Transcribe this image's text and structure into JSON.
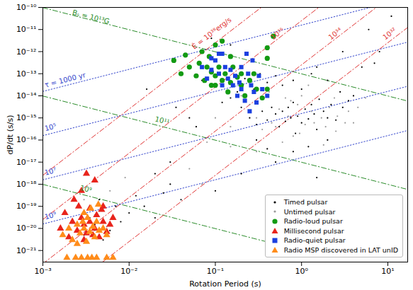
{
  "chart_data": {
    "type": "scatter",
    "xlabel": "Rotation Period (s)",
    "ylabel": "dP/dt (s/s)",
    "log": true,
    "xlim": [
      0.001,
      17
    ],
    "ylim": [
      3e-22,
      1e-10
    ],
    "xticks": [
      {
        "value": 0.001,
        "label": "10⁻³"
      },
      {
        "value": 0.01,
        "label": "10⁻²"
      },
      {
        "value": 0.1,
        "label": "10⁻¹"
      },
      {
        "value": 1,
        "label": "10⁰"
      },
      {
        "value": 10,
        "label": "10¹"
      }
    ],
    "yticks": [
      {
        "value": 1e-10,
        "label": "10⁻¹⁰"
      },
      {
        "value": 1e-11,
        "label": "10⁻¹¹"
      },
      {
        "value": 1e-12,
        "label": "10⁻¹²"
      },
      {
        "value": 1e-13,
        "label": "10⁻¹³"
      },
      {
        "value": 1e-14,
        "label": "10⁻¹⁴"
      },
      {
        "value": 1e-15,
        "label": "10⁻¹⁵"
      },
      {
        "value": 1e-16,
        "label": "10⁻¹⁶"
      },
      {
        "value": 1e-17,
        "label": "10⁻¹⁷"
      },
      {
        "value": 1e-18,
        "label": "10⁻¹⁸"
      },
      {
        "value": 1e-19,
        "label": "10⁻¹⁹"
      },
      {
        "value": 1e-20,
        "label": "10⁻²⁰"
      },
      {
        "value": 1e-21,
        "label": "10⁻²¹"
      }
    ],
    "legend": "lower right",
    "series": [
      {
        "name": "Timed pulsar",
        "color": "#000000",
        "marker": "dot",
        "x": [
          0.2,
          0.25,
          0.3,
          0.35,
          0.4,
          0.45,
          0.5,
          0.55,
          0.6,
          0.65,
          0.7,
          0.75,
          0.8,
          0.85,
          0.9,
          1.0,
          1.1,
          1.2,
          1.3,
          1.4,
          1.5,
          1.6,
          1.8,
          2.0,
          2.2,
          2.5,
          2.8,
          3.0,
          3.5,
          4.0,
          0.15,
          0.12,
          0.18,
          0.22,
          0.28,
          0.33,
          0.4,
          0.5,
          0.6,
          0.8,
          1.0,
          1.3,
          2.0,
          0.09,
          0.1,
          0.07,
          0.05,
          0.06,
          0.3,
          0.5,
          0.8,
          1.2,
          2.0,
          0.4,
          1.5,
          0.03,
          0.02,
          0.04,
          0.1,
          0.2,
          5,
          8,
          11,
          6,
          7,
          0.016,
          0.09,
          0.15,
          3,
          1.5,
          0.035,
          0.002,
          0.003,
          0.004,
          0.005,
          0.006,
          0.008,
          0.01,
          0.015,
          0.02,
          0.0045,
          0.0035,
          0.007,
          0.012,
          0.03,
          0.025
        ],
        "values": [
          3e-15,
          1e-15,
          5e-16,
          2e-15,
          8e-16,
          3e-15,
          1.5e-15,
          4e-16,
          2e-15,
          7e-16,
          3e-15,
          1e-15,
          5e-15,
          2e-16,
          1.2e-15,
          6e-16,
          2.5e-15,
          9e-16,
          4e-15,
          1.5e-15,
          3e-16,
          7e-15,
          2e-15,
          1e-15,
          4e-15,
          8e-16,
          1.5e-14,
          3e-15,
          6e-15,
          1e-14,
          8e-15,
          5e-15,
          1.5e-14,
          6e-14,
          2e-14,
          1e-13,
          4e-14,
          8e-14,
          3e-14,
          5e-14,
          2e-14,
          1e-13,
          5e-14,
          1e-13,
          3e-14,
          5e-14,
          1e-15,
          4e-16,
          1e-16,
          1e-17,
          3e-17,
          5e-17,
          1e-16,
          4e-17,
          2e-18,
          1e-17,
          3e-18,
          2e-19,
          5e-19,
          3e-18,
          2e-13,
          1e-12,
          4e-11,
          1e-11,
          3e-13,
          2e-14,
          4e-12,
          2e-12,
          1e-12,
          2e-13,
          3e-15,
          1e-20,
          5e-21,
          1.5e-20,
          3e-21,
          8e-21,
          2e-20,
          5e-20,
          1e-19,
          3e-20,
          2e-19,
          3e-20,
          1e-19,
          3e-19,
          1e-18,
          4e-19
        ]
      },
      {
        "name": "Untimed pulsar",
        "color": "#9a9a9a",
        "marker": "dot",
        "x": [
          0.3,
          0.45,
          0.55,
          0.7,
          0.9,
          1.1,
          1.3,
          1.7,
          2.1,
          2.6,
          3.2,
          4.5,
          0.25,
          0.35,
          0.6,
          0.95,
          1.4,
          1.9,
          0.65,
          0.42,
          1.0,
          0.2,
          0.15,
          0.8,
          1.2,
          2.4,
          3.5,
          5.5,
          0.5,
          0.75,
          0.1,
          0.08,
          0.3,
          0.009,
          0.006,
          0.004,
          0.0025,
          0.003,
          0.05,
          0.07,
          0.15,
          1.8,
          2.5,
          4,
          0.004,
          0.0055
        ],
        "values": [
          1e-15,
          6e-16,
          2.5e-15,
          1.2e-15,
          4e-15,
          5e-16,
          2e-15,
          1e-15,
          3e-15,
          1.2e-15,
          6e-16,
          3e-15,
          4e-15,
          3e-16,
          8e-17,
          2e-16,
          6e-16,
          4e-16,
          8e-15,
          1.5e-14,
          1e-14,
          1e-14,
          4e-16,
          1.5e-16,
          3e-14,
          8e-15,
          2e-15,
          8e-15,
          4e-16,
          6e-15,
          1e-15,
          8e-17,
          3e-17,
          2e-18,
          5e-19,
          4e-20,
          1.5e-20,
          2e-19,
          5e-18,
          1e-18,
          5e-17,
          6e-17,
          2.5e-16,
          6e-16,
          8e-21,
          1.2e-20
        ]
      },
      {
        "name": "Radio-loud pulsar",
        "color": "#139a13",
        "marker": "circle",
        "x": [
          0.033,
          0.04,
          0.05,
          0.06,
          0.065,
          0.07,
          0.075,
          0.08,
          0.085,
          0.09,
          0.1,
          0.1,
          0.11,
          0.12,
          0.13,
          0.14,
          0.15,
          0.16,
          0.18,
          0.2,
          0.22,
          0.25,
          0.3,
          0.35,
          0.4,
          0.045,
          0.1,
          0.15,
          0.12,
          0.4,
          0.28,
          0.09,
          0.2,
          0.47,
          0.4
        ],
        "values": [
          4e-13,
          1e-13,
          2e-13,
          8e-14,
          3e-13,
          1e-12,
          5e-14,
          2e-13,
          6e-13,
          1.2e-13,
          3e-14,
          8e-14,
          2e-13,
          5e-14,
          1e-13,
          1.5e-14,
          4e-14,
          2e-13,
          7e-14,
          3e-14,
          1e-14,
          5e-14,
          2e-14,
          8e-15,
          2e-14,
          7e-13,
          2e-12,
          6e-13,
          3e-12,
          5e-13,
          1e-13,
          3e-14,
          1e-13,
          5e-12,
          1.5e-12
        ]
      },
      {
        "name": "Millisecond pulsar",
        "color": "#e8241c",
        "marker": "triangle",
        "x": [
          0.0016,
          0.002,
          0.0022,
          0.0025,
          0.0028,
          0.003,
          0.0032,
          0.0035,
          0.004,
          0.0045,
          0.005,
          0.0055,
          0.006,
          0.0028,
          0.0032,
          0.004,
          0.0023,
          0.0035,
          0.0042,
          0.005,
          0.0018,
          0.0026,
          0.003,
          0.0038,
          0.0065,
          0.0048
        ],
        "values": [
          1e-20,
          4e-21,
          2e-20,
          8e-21,
          3e-20,
          1.5e-20,
          6e-21,
          2e-20,
          1e-20,
          4e-21,
          2e-20,
          7e-21,
          1.5e-20,
          5e-19,
          3e-18,
          1.5e-18,
          2e-19,
          8e-20,
          4e-20,
          1e-19,
          5e-20,
          1e-19,
          3e-21,
          5e-21,
          3e-20,
          7e-20
        ]
      },
      {
        "name": "Radio-quiet pulsar",
        "color": "#1b3fe0",
        "marker": "square",
        "x": [
          0.07,
          0.08,
          0.09,
          0.1,
          0.11,
          0.12,
          0.13,
          0.14,
          0.15,
          0.16,
          0.17,
          0.18,
          0.19,
          0.2,
          0.22,
          0.24,
          0.26,
          0.28,
          0.3,
          0.32,
          0.35,
          0.4,
          0.09,
          0.11,
          0.2,
          0.27,
          0.25,
          0.23,
          0.12
        ],
        "values": [
          2e-13,
          6e-14,
          1.5e-13,
          4e-13,
          1e-13,
          3e-14,
          2e-13,
          6e-14,
          1.5e-13,
          3e-14,
          8e-14,
          1e-14,
          4e-14,
          2e-14,
          6e-15,
          1e-13,
          3e-14,
          1.5e-14,
          5e-15,
          8e-14,
          2e-14,
          1e-14,
          5e-13,
          8e-13,
          2e-13,
          4e-13,
          2e-15,
          8e-13,
          8e-13
        ]
      },
      {
        "name": "Radio MSP discovered in LAT unID",
        "color": "#ff8c1a",
        "marker": "triangle",
        "x": [
          0.0017,
          0.002,
          0.0022,
          0.0025,
          0.0027,
          0.003,
          0.0033,
          0.0035,
          0.0038,
          0.004,
          0.0042,
          0.0045,
          0.005,
          0.0055,
          0.003,
          0.0036,
          0.0025,
          0.0019,
          0.0024,
          0.0028,
          0.0033,
          0.0037,
          0.0042,
          0.0055,
          0.0065,
          0.0032,
          0.0029,
          0.0044
        ],
        "values": [
          5e-21,
          1e-20,
          3e-21,
          1.5e-20,
          6e-21,
          1e-20,
          3e-20,
          7e-21,
          1.2e-20,
          4e-21,
          2e-20,
          8e-21,
          1e-20,
          5e-21,
          5e-20,
          8e-20,
          2e-21,
          4.7e-22,
          4.7e-22,
          4.7e-22,
          4.7e-22,
          4.7e-22,
          4.7e-22,
          4.7e-22,
          4.7e-22,
          2.5e-21,
          2e-20,
          1.2e-19
        ]
      }
    ],
    "reference_lines": [
      {
        "label": "Bₛ = 10¹³G",
        "color": "#2a8c2a",
        "line_style": "dashdot",
        "x": [
          0.001,
          17
        ],
        "values": [
          9.8e-11,
          5.8e-15
        ],
        "label_x": 0.0022,
        "label_y": 6e-11
      },
      {
        "label": "10¹¹",
        "color": "#2a8c2a",
        "line_style": "dashdot",
        "x": [
          0.001,
          17
        ],
        "values": [
          9.8e-15,
          5.8e-19
        ],
        "label_x": 0.02,
        "label_y": 9e-16
      },
      {
        "label": "10⁹",
        "color": "#2a8c2a",
        "line_style": "dashdot",
        "x": [
          0.001,
          0.4
        ],
        "values": [
          9.8e-19,
          2.45e-21
        ],
        "label_x": 0.0027,
        "label_y": 7e-19
      },
      {
        "label": "τ = 1000 yr",
        "color": "#3345cc",
        "line_style": "dotted",
        "x": [
          0.001,
          17
        ],
        "values": [
          1.58e-14,
          2.7e-10
        ],
        "label_x": 0.00105,
        "label_y": 3e-14
      },
      {
        "label": "10⁵",
        "color": "#3345cc",
        "line_style": "dotted",
        "x": [
          0.001,
          17
        ],
        "values": [
          1.58e-16,
          2.7e-12
        ],
        "label_x": 0.00105,
        "label_y": 3.2e-16
      },
      {
        "label": "10⁷",
        "color": "#3345cc",
        "line_style": "dotted",
        "x": [
          0.001,
          17
        ],
        "values": [
          1.58e-18,
          2.7e-14
        ],
        "label_x": 0.00105,
        "label_y": 3.2e-18
      },
      {
        "label": "10⁹",
        "color": "#3345cc",
        "line_style": "dotted",
        "x": [
          0.001,
          17
        ],
        "values": [
          1.58e-20,
          2.7e-16
        ],
        "label_x": 0.00105,
        "label_y": 3.2e-20
      },
      {
        "label": "Ė = 10³⁸erg/s",
        "color": "#e03333",
        "line_style": "dashdot",
        "x": [
          0.001,
          0.5
        ],
        "values": [
          2.53e-18,
          3.16e-10
        ],
        "label_x": 0.055,
        "label_y": 1.5e-12
      },
      {
        "label": "10³⁶",
        "color": "#e03333",
        "line_style": "dashdot",
        "x": [
          0.001,
          2
        ],
        "values": [
          2.53e-20,
          2.02e-10
        ],
        "label_x": 0.45,
        "label_y": 4e-12
      },
      {
        "label": "10³⁴",
        "color": "#e03333",
        "line_style": "dashdot",
        "x": [
          0.001,
          10
        ],
        "values": [
          2.53e-22,
          2.53e-10
        ],
        "label_x": 2.1,
        "label_y": 4e-12
      },
      {
        "label": "10³²",
        "color": "#e03333",
        "line_style": "dashdot",
        "x": [
          0.004,
          17
        ],
        "values": [
          1.62e-22,
          1.24e-11
        ],
        "label_x": 9,
        "label_y": 4e-12
      }
    ]
  }
}
